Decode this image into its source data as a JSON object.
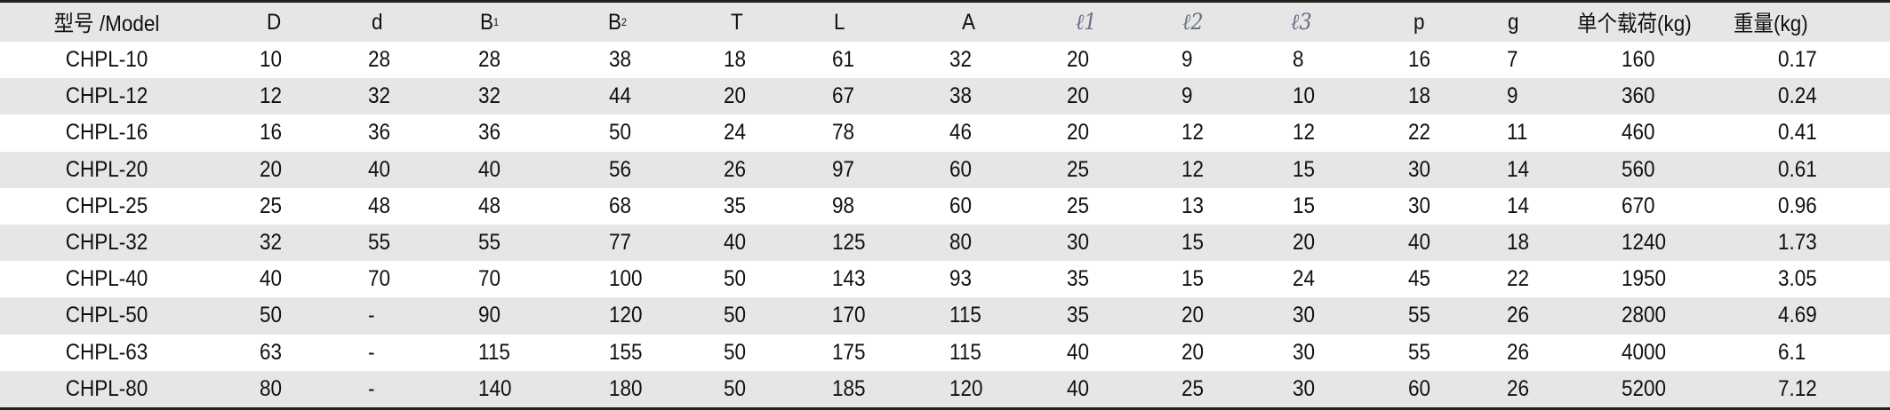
{
  "header": {
    "model": "型号 /Model",
    "D": "D",
    "d": "d",
    "B1": {
      "base": "B",
      "sub": "1"
    },
    "B2": {
      "base": "B",
      "sub": "2"
    },
    "T": "T",
    "L": "L",
    "A": "A",
    "l1": "ℓ1",
    "l2": "ℓ2",
    "l3": "ℓ3",
    "p": "p",
    "g": "g",
    "load": "单个载荷(kg)",
    "weight": "重量(kg)"
  },
  "rows": [
    [
      "CHPL-10",
      "10",
      "28",
      "28",
      "38",
      "18",
      "61",
      "32",
      "20",
      "9",
      "8",
      "16",
      "7",
      "160",
      "0.17"
    ],
    [
      "CHPL-12",
      "12",
      "32",
      "32",
      "44",
      "20",
      "67",
      "38",
      "20",
      "9",
      "10",
      "18",
      "9",
      "360",
      "0.24"
    ],
    [
      "CHPL-16",
      "16",
      "36",
      "36",
      "50",
      "24",
      "78",
      "46",
      "20",
      "12",
      "12",
      "22",
      "11",
      "460",
      "0.41"
    ],
    [
      "CHPL-20",
      "20",
      "40",
      "40",
      "56",
      "26",
      "97",
      "60",
      "25",
      "12",
      "15",
      "30",
      "14",
      "560",
      "0.61"
    ],
    [
      "CHPL-25",
      "25",
      "48",
      "48",
      "68",
      "35",
      "98",
      "60",
      "25",
      "13",
      "15",
      "30",
      "14",
      "670",
      "0.96"
    ],
    [
      "CHPL-32",
      "32",
      "55",
      "55",
      "77",
      "40",
      "125",
      "80",
      "30",
      "15",
      "20",
      "40",
      "18",
      "1240",
      "1.73"
    ],
    [
      "CHPL-40",
      "40",
      "70",
      "70",
      "100",
      "50",
      "143",
      "93",
      "35",
      "15",
      "24",
      "45",
      "22",
      "1950",
      "3.05"
    ],
    [
      "CHPL-50",
      "50",
      "-",
      "90",
      "120",
      "50",
      "170",
      "115",
      "35",
      "20",
      "30",
      "55",
      "26",
      "2800",
      "4.69"
    ],
    [
      "CHPL-63",
      "63",
      "-",
      "115",
      "155",
      "50",
      "175",
      "115",
      "40",
      "20",
      "30",
      "55",
      "26",
      "4000",
      "6.1"
    ],
    [
      "CHPL-80",
      "80",
      "-",
      "140",
      "180",
      "50",
      "185",
      "120",
      "40",
      "25",
      "30",
      "60",
      "26",
      "5200",
      "7.12"
    ]
  ],
  "colors": {
    "stripe": "#e6e6e6",
    "ell": "#6a6f86",
    "rule": "#222222"
  }
}
